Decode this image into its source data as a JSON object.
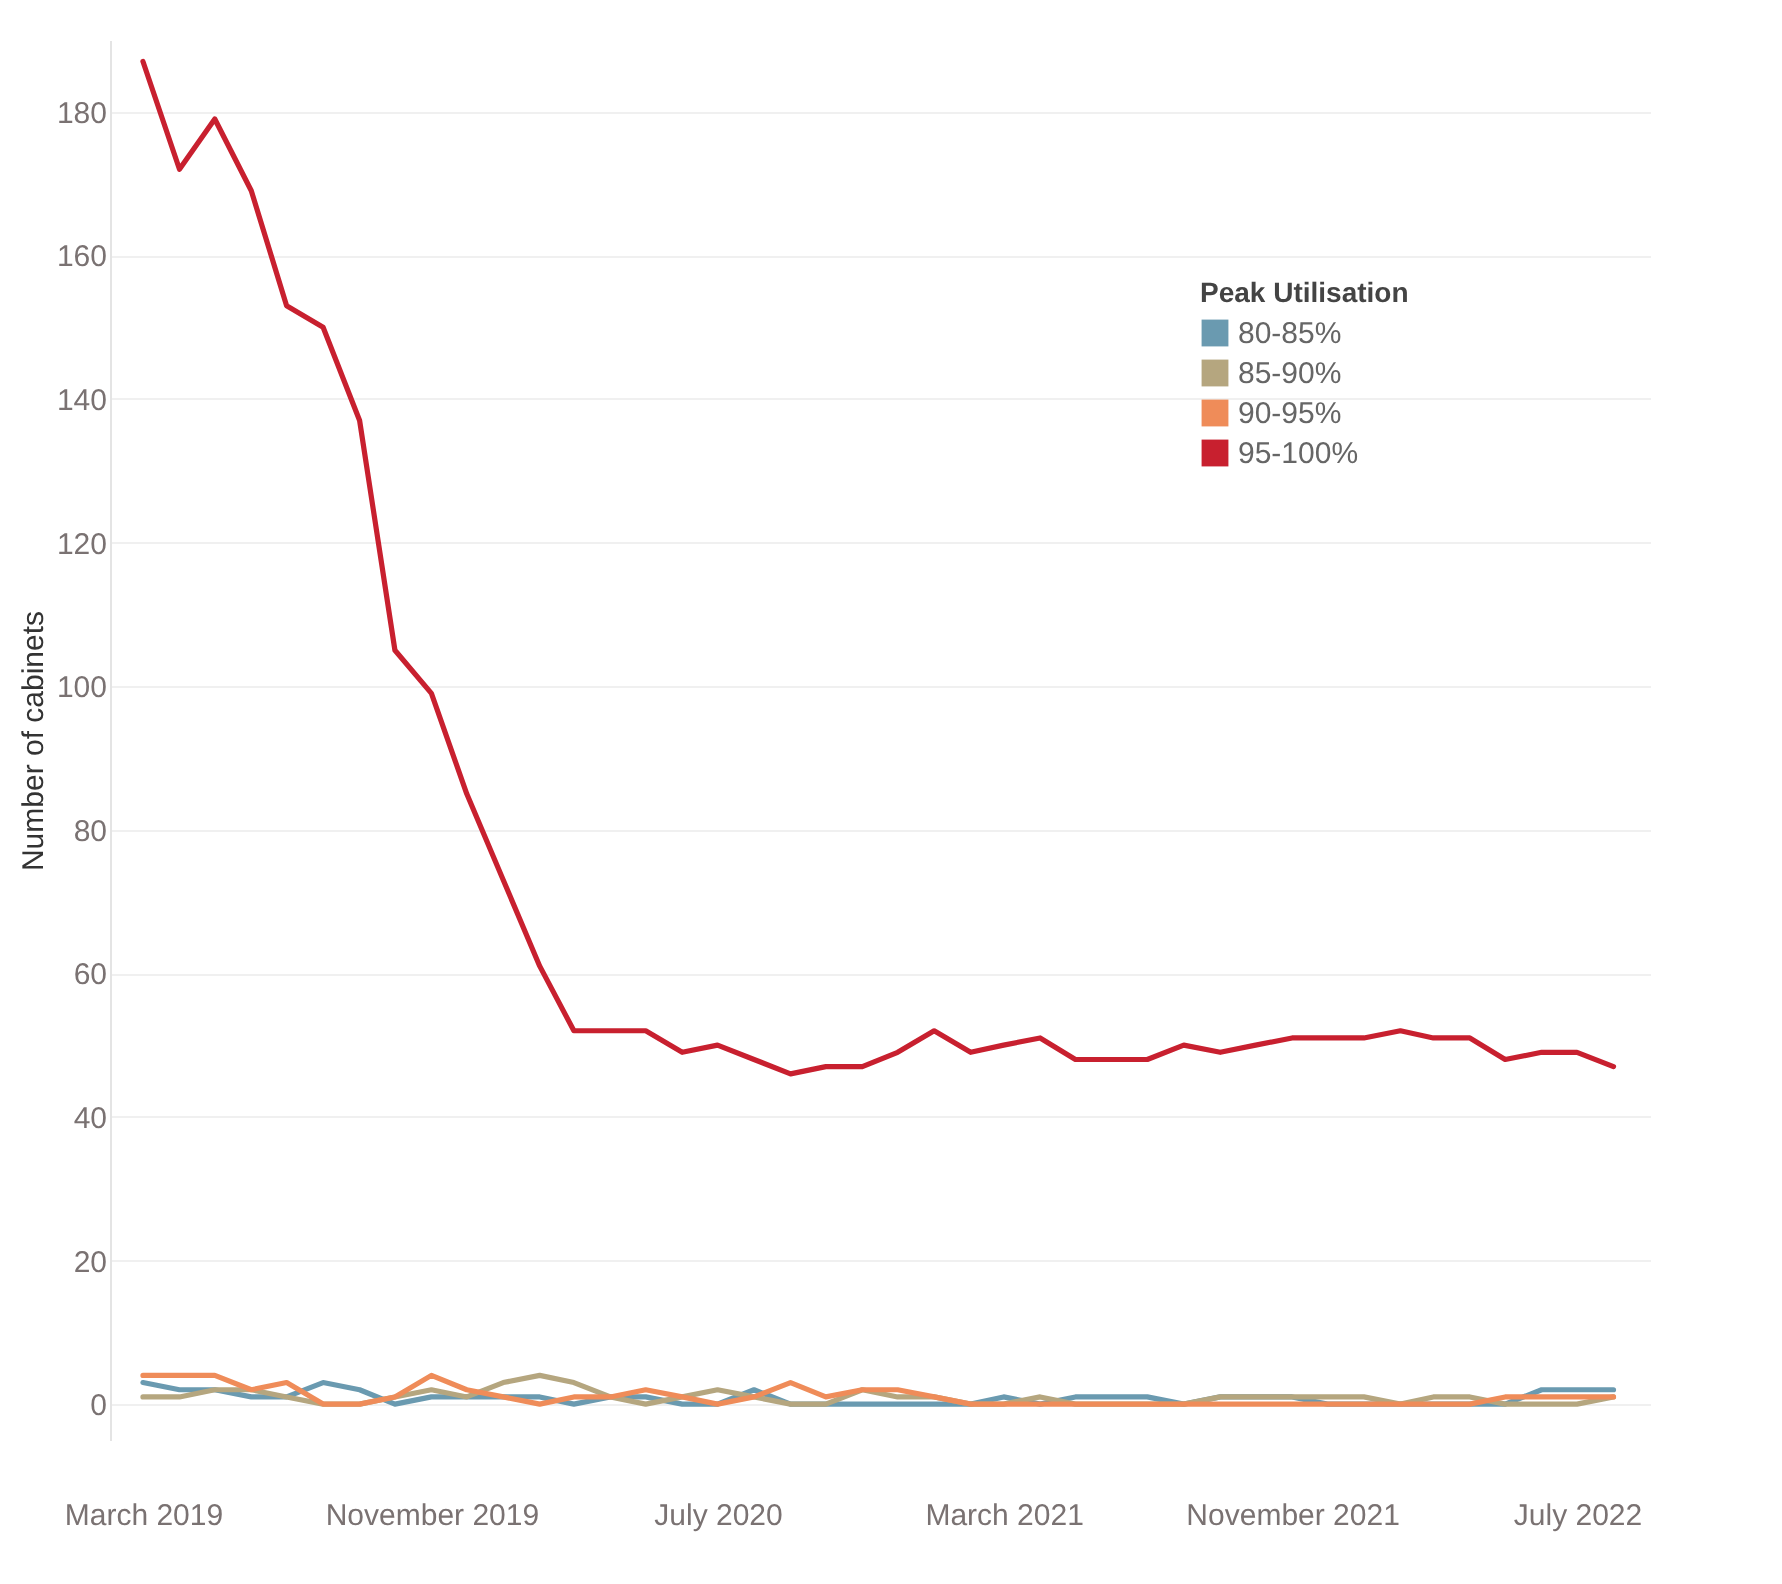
{
  "chart_data": {
    "type": "line",
    "ylabel": "Number of cabinets",
    "legend_title": "Peak Utilisation",
    "x": [
      "2019-03",
      "2019-04",
      "2019-05",
      "2019-06",
      "2019-07",
      "2019-08",
      "2019-09",
      "2019-10",
      "2019-11",
      "2019-12",
      "2020-01",
      "2020-02",
      "2020-03",
      "2020-04",
      "2020-05",
      "2020-06",
      "2020-07",
      "2020-08",
      "2020-09",
      "2020-10",
      "2020-11",
      "2020-12",
      "2021-01",
      "2021-02",
      "2021-03",
      "2021-04",
      "2021-05",
      "2021-06",
      "2021-07",
      "2021-08",
      "2021-09",
      "2021-10",
      "2021-11",
      "2021-12",
      "2022-01",
      "2022-02",
      "2022-03",
      "2022-04",
      "2022-05",
      "2022-06",
      "2022-07",
      "2022-08"
    ],
    "series": [
      {
        "name": "80-85%",
        "color": "#6a9ab0",
        "values": [
          3,
          2,
          2,
          1,
          1,
          3,
          2,
          0,
          1,
          1,
          1,
          1,
          0,
          1,
          1,
          0,
          0,
          2,
          0,
          0,
          0,
          0,
          0,
          0,
          1,
          0,
          1,
          1,
          1,
          0,
          1,
          1,
          1,
          0,
          0,
          0,
          0,
          0,
          0,
          2,
          2,
          2
        ]
      },
      {
        "name": "85-90%",
        "color": "#b5a67f",
        "values": [
          1,
          1,
          2,
          2,
          1,
          0,
          0,
          1,
          2,
          1,
          3,
          4,
          3,
          1,
          0,
          1,
          2,
          1,
          0,
          0,
          2,
          1,
          1,
          0,
          0,
          1,
          0,
          0,
          0,
          0,
          1,
          1,
          1,
          1,
          1,
          0,
          1,
          1,
          0,
          0,
          0,
          1
        ]
      },
      {
        "name": "90-95%",
        "color": "#ef8c59",
        "values": [
          4,
          4,
          4,
          2,
          3,
          0,
          0,
          1,
          4,
          2,
          1,
          0,
          1,
          1,
          2,
          1,
          0,
          1,
          3,
          1,
          2,
          2,
          1,
          0,
          0,
          0,
          0,
          0,
          0,
          0,
          0,
          0,
          0,
          0,
          0,
          0,
          0,
          0,
          1,
          1,
          1,
          1
        ]
      },
      {
        "name": "95-100%",
        "color": "#c8202f",
        "values": [
          187,
          172,
          179,
          169,
          153,
          150,
          137,
          105,
          99,
          85,
          73,
          61,
          52,
          52,
          52,
          49,
          50,
          48,
          46,
          47,
          47,
          49,
          52,
          49,
          50,
          51,
          48,
          48,
          48,
          50,
          49,
          50,
          51,
          51,
          51,
          52,
          51,
          51,
          48,
          49,
          49,
          47
        ]
      }
    ],
    "xlim": [
      "2019-02",
      "2022-09"
    ],
    "xticks": [
      {
        "value": "2019-03",
        "label": "March 2019"
      },
      {
        "value": "2019-11",
        "label": "November 2019"
      },
      {
        "value": "2020-07",
        "label": "July 2020"
      },
      {
        "value": "2021-03",
        "label": "March 2021"
      },
      {
        "value": "2021-11",
        "label": "November 2021"
      },
      {
        "value": "2022-07",
        "label": "July 2022"
      }
    ],
    "ylim": [
      -5,
      190
    ],
    "yticks": [
      0,
      20,
      40,
      60,
      80,
      100,
      120,
      140,
      160,
      180
    ],
    "grid": "y",
    "legend": "top right",
    "line_style": "solid"
  }
}
